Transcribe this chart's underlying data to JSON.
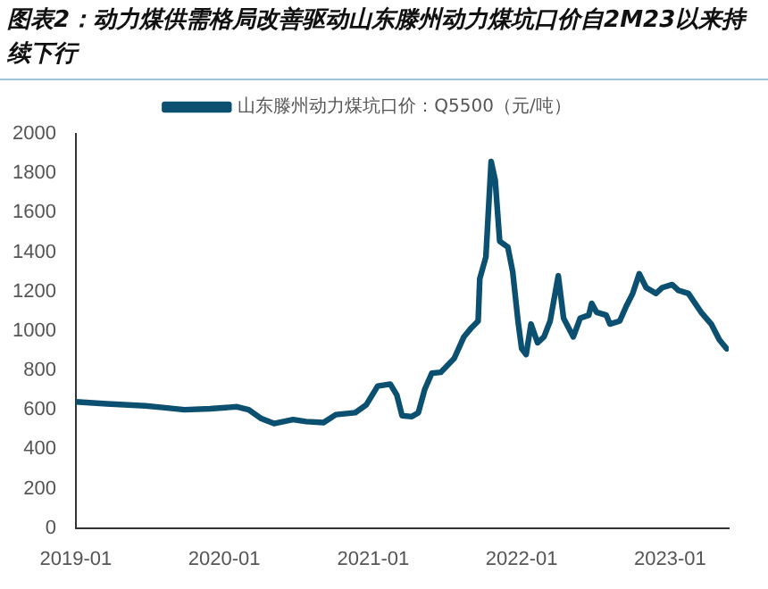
{
  "chart_data": {
    "type": "line",
    "title": "图表2：动力煤供需格局改善驱动山东滕州动力煤坑口价自2M23以来持续下行",
    "x": [
      "2019-01-01",
      "2019-03-18",
      "2019-06-21",
      "2019-08-08",
      "2019-09-25",
      "2019-11-27",
      "2020-02-01",
      "2020-03-01",
      "2020-04-01",
      "2020-05-02",
      "2020-06-18",
      "2020-07-20",
      "2020-09-01",
      "2020-10-01",
      "2020-11-18",
      "2020-12-15",
      "2021-01-12",
      "2021-02-12",
      "2021-02-28",
      "2021-03-13",
      "2021-04-06",
      "2021-04-22",
      "2021-05-08",
      "2021-05-25",
      "2021-06-16",
      "2021-07-19",
      "2021-08-12",
      "2021-08-28",
      "2021-09-16",
      "2021-09-20",
      "2021-10-05",
      "2021-10-18",
      "2021-10-28",
      "2021-11-08",
      "2021-11-28",
      "2021-12-10",
      "2021-12-23",
      "2022-01-01",
      "2022-01-12",
      "2022-01-24",
      "2022-02-09",
      "2022-02-25",
      "2022-03-12",
      "2022-04-01",
      "2022-04-14",
      "2022-05-08",
      "2022-05-25",
      "2022-06-15",
      "2022-06-22",
      "2022-07-04",
      "2022-07-28",
      "2022-08-06",
      "2022-08-30",
      "2022-09-15",
      "2022-10-01",
      "2022-10-17",
      "2022-11-03",
      "2022-11-27",
      "2022-12-13",
      "2023-01-06",
      "2023-01-22",
      "2023-02-15",
      "2023-03-18",
      "2023-04-12",
      "2023-05-02",
      "2023-05-20"
    ],
    "series": [
      {
        "name": "山东滕州动力煤坑口价：Q5500（元/吨）",
        "color": "#0b4f71",
        "values": [
          640,
          630,
          620,
          610,
          600,
          605,
          615,
          600,
          555,
          530,
          550,
          540,
          535,
          575,
          585,
          625,
          720,
          730,
          675,
          570,
          565,
          585,
          705,
          785,
          790,
          860,
          970,
          1010,
          1050,
          1265,
          1375,
          1860,
          1765,
          1455,
          1425,
          1300,
          1050,
          910,
          880,
          1035,
          940,
          970,
          1050,
          1280,
          1065,
          970,
          1065,
          1080,
          1140,
          1095,
          1080,
          1035,
          1050,
          1125,
          1190,
          1290,
          1220,
          1190,
          1220,
          1235,
          1205,
          1190,
          1095,
          1035,
          955,
          910
        ]
      }
    ],
    "xlim": [
      "2019-01-01",
      "2023-05-25"
    ],
    "xticks": [
      "2019-01",
      "2020-01",
      "2021-01",
      "2022-01",
      "2023-01"
    ],
    "ylim": [
      0,
      2000
    ],
    "yticks": [
      0,
      200,
      400,
      600,
      800,
      1000,
      1200,
      1400,
      1600,
      1800,
      2000
    ],
    "grid": false,
    "legend": "top",
    "marker": "none",
    "line_style": "solid"
  }
}
